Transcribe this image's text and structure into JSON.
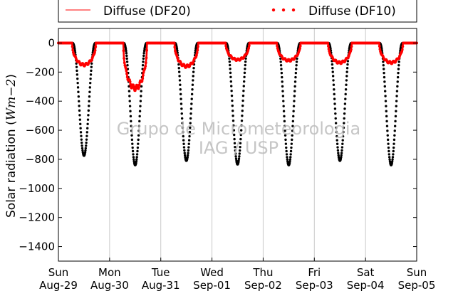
{
  "chart_data": {
    "type": "scatter",
    "ylabel_prefix": "Solar radiation (",
    "ylabel_math": "Wm−2",
    "ylabel_suffix": ")",
    "ylim": [
      -1500,
      100
    ],
    "yticks": [
      0,
      -200,
      -400,
      -600,
      -800,
      -1000,
      -1200,
      -1400
    ],
    "ytick_labels": [
      "0",
      "−200",
      "−400",
      "−600",
      "−800",
      "−1000",
      "−1200",
      "−1400"
    ],
    "xlim": [
      "2010-08-29",
      "2010-09-05"
    ],
    "xticks": [
      {
        "day": "Sun",
        "date": "Aug-29"
      },
      {
        "day": "Mon",
        "date": "Aug-30"
      },
      {
        "day": "Tue",
        "date": "Aug-31"
      },
      {
        "day": "Wed",
        "date": "Sep-01"
      },
      {
        "day": "Thu",
        "date": "Sep-02"
      },
      {
        "day": "Fri",
        "date": "Sep-03"
      },
      {
        "day": "Sat",
        "date": "Sep-04"
      },
      {
        "day": "Sun",
        "date": "Sep-05"
      }
    ],
    "grid": "vertical",
    "legend_placement": "top",
    "series": [
      {
        "name": "Diffuse (DF20)",
        "style": "line",
        "color": "#ff0000",
        "daily_minimum": [
          -150,
          -310,
          -160,
          -115,
          -120,
          -135,
          -135
        ]
      },
      {
        "name": "Diffuse (DF10)",
        "style": "dots",
        "color": "#ff0000",
        "daily_minimum": [
          -150,
          -310,
          -160,
          -115,
          -120,
          -135,
          -135
        ]
      },
      {
        "name": "",
        "style": "dots",
        "color": "#000000",
        "daily_minimum": [
          -775,
          -840,
          -810,
          -835,
          -840,
          -810,
          -840
        ]
      }
    ],
    "watermark": [
      "Grupo de Micrometeorologia",
      "IAG / USP"
    ]
  }
}
